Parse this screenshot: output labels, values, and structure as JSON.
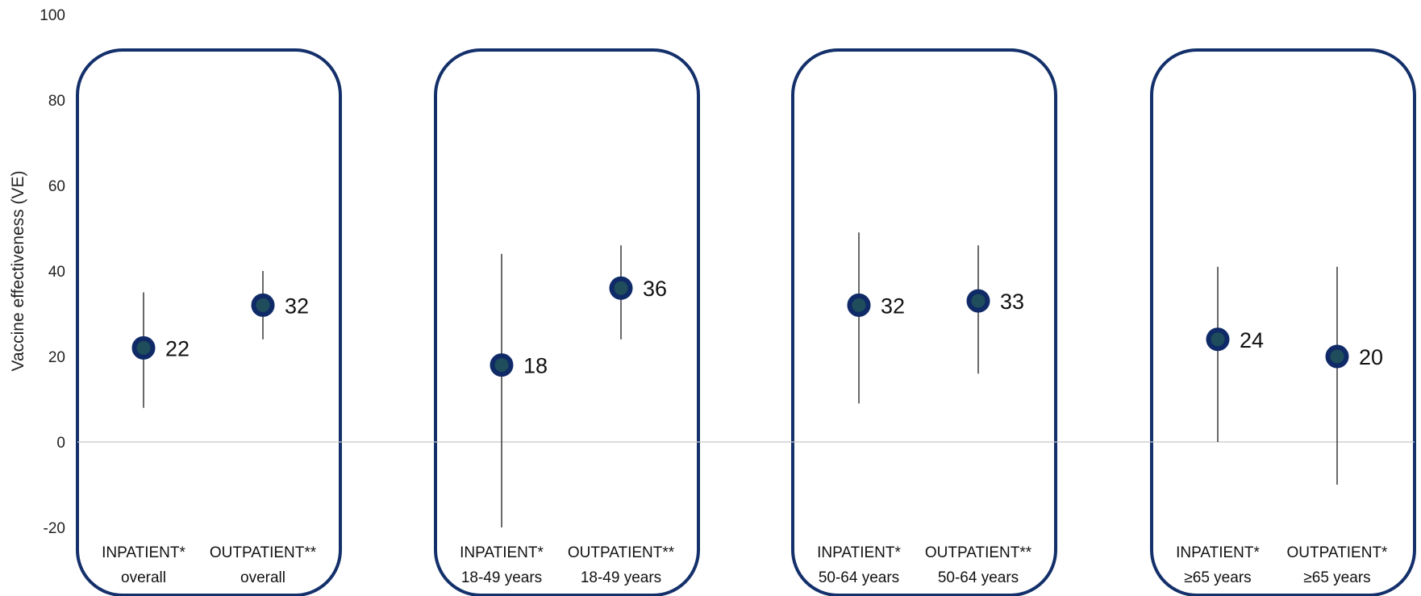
{
  "chart_data": {
    "type": "scatter",
    "ylabel": "Vaccine effectiveness (VE)",
    "ylim": [
      -20,
      100
    ],
    "yticks": [
      "100",
      "80",
      "60",
      "40",
      "20",
      "0",
      "-20"
    ],
    "grid": false,
    "colors": {
      "frame": "#14306b",
      "marker_outer": "#0f2a66",
      "marker_inner": "#1f4d5c",
      "errorbar": "#444444",
      "zero_line": "#c8c8c8"
    },
    "groups": [
      {
        "points": [
          {
            "label_line1": "INPATIENT*",
            "label_line2": "overall",
            "value": 22,
            "value_label": "22",
            "ci": [
              8,
              35
            ]
          },
          {
            "label_line1": "OUTPATIENT**",
            "label_line2": "overall",
            "value": 32,
            "value_label": "32",
            "ci": [
              24,
              40
            ]
          }
        ]
      },
      {
        "points": [
          {
            "label_line1": "INPATIENT*",
            "label_line2": "18-49 years",
            "value": 18,
            "value_label": "18",
            "ci": [
              -20,
              44
            ]
          },
          {
            "label_line1": "OUTPATIENT**",
            "label_line2": "18-49 years",
            "value": 36,
            "value_label": "36",
            "ci": [
              24,
              46
            ]
          }
        ]
      },
      {
        "points": [
          {
            "label_line1": "INPATIENT*",
            "label_line2": "50-64 years",
            "value": 32,
            "value_label": "32",
            "ci": [
              9,
              49
            ]
          },
          {
            "label_line1": "OUTPATIENT**",
            "label_line2": "50-64 years",
            "value": 33,
            "value_label": "33",
            "ci": [
              16,
              46
            ]
          }
        ]
      },
      {
        "points": [
          {
            "label_line1": "INPATIENT*",
            "label_line2": "≥65 years",
            "value": 24,
            "value_label": "24",
            "ci": [
              0,
              41
            ]
          },
          {
            "label_line1": "OUTPATIENT*",
            "label_line2": "≥65 years",
            "value": 20,
            "value_label": "20",
            "ci": [
              -10,
              41
            ]
          }
        ]
      }
    ]
  }
}
